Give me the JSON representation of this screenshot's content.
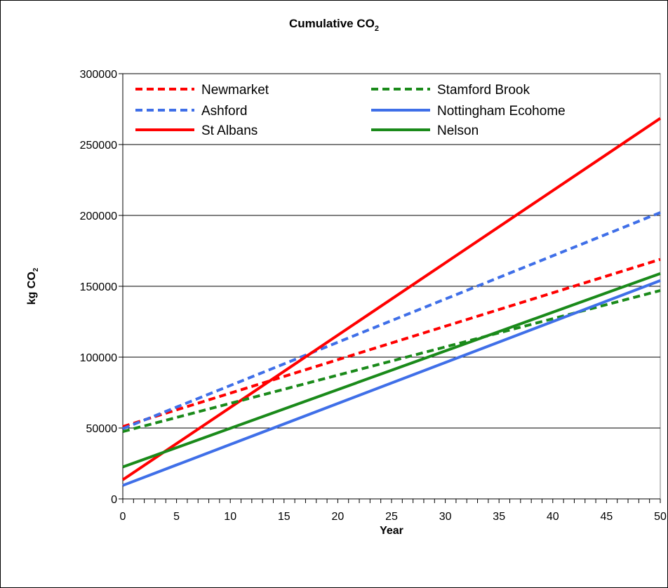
{
  "chart_data": {
    "type": "line",
    "title": "Cumulative CO",
    "title_subscript": "2",
    "xlabel": "Year",
    "ylabel": "kg CO",
    "ylabel_subscript": "2",
    "xlim": [
      0,
      50
    ],
    "ylim": [
      0,
      300000
    ],
    "x_ticks": [
      0,
      5,
      10,
      15,
      20,
      25,
      30,
      35,
      40,
      45,
      50
    ],
    "x_tick_labels": [
      "0",
      "5",
      "10",
      "15",
      "20",
      "25",
      "30",
      "35",
      "40",
      "45",
      "50"
    ],
    "y_ticks": [
      0,
      50000,
      100000,
      150000,
      200000,
      250000,
      300000
    ],
    "y_tick_labels": [
      "0",
      "50000",
      "100000",
      "150000",
      "200000",
      "250000",
      "300000"
    ],
    "grid": "horizontal",
    "legend_position": "top, inside plot, two columns",
    "series": [
      {
        "name": "Newmarket",
        "color": "#ff0000",
        "dash": "dashed",
        "x": [
          0,
          50
        ],
        "y": [
          51000,
          169000
        ]
      },
      {
        "name": "Ashford",
        "color": "#3f6fe8",
        "dash": "dashed",
        "x": [
          0,
          50
        ],
        "y": [
          49500,
          202000
        ]
      },
      {
        "name": "St Albans",
        "color": "#ff0000",
        "dash": "solid",
        "x": [
          0,
          50
        ],
        "y": [
          13500,
          268500
        ]
      },
      {
        "name": "Stamford Brook",
        "color": "#1a8a1a",
        "dash": "dashed",
        "x": [
          0,
          50
        ],
        "y": [
          47500,
          147000
        ]
      },
      {
        "name": "Nottingham Ecohome",
        "color": "#3f6fe8",
        "dash": "solid",
        "x": [
          0,
          50
        ],
        "y": [
          9500,
          154000
        ]
      },
      {
        "name": "Nelson",
        "color": "#1a8a1a",
        "dash": "solid",
        "x": [
          0,
          50
        ],
        "y": [
          22500,
          159000
        ]
      }
    ]
  }
}
